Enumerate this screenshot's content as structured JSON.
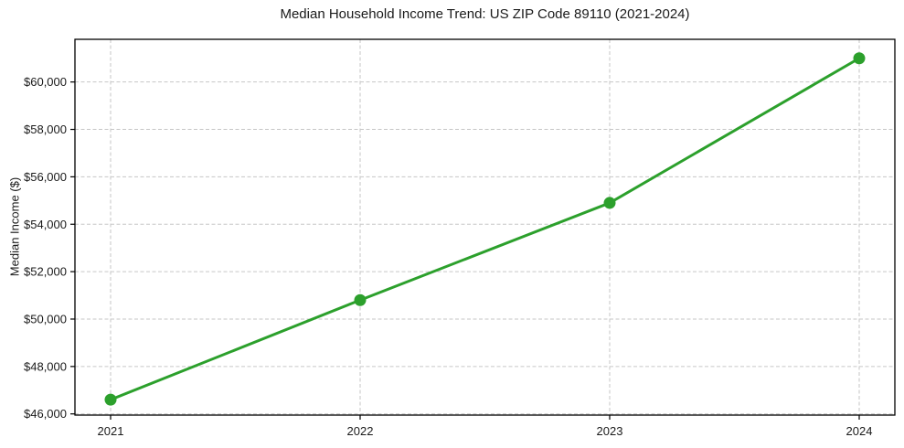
{
  "chart_data": {
    "type": "line",
    "title": "Median Household Income Trend: US ZIP Code 89110 (2021-2024)",
    "xlabel": "",
    "ylabel": "Median Income ($)",
    "categories": [
      "2021",
      "2022",
      "2023",
      "2024"
    ],
    "series": [
      {
        "name": "Median Household Income",
        "values": [
          46600,
          50800,
          54900,
          61000
        ]
      }
    ],
    "ylim": [
      45950,
      61800
    ],
    "yticks": [
      46000,
      48000,
      50000,
      52000,
      54000,
      56000,
      58000,
      60000
    ],
    "ytick_labels": [
      "$46,000",
      "$48,000",
      "$50,000",
      "$52,000",
      "$54,000",
      "$56,000",
      "$58,000",
      "$60,000"
    ],
    "xtick_labels": [
      "2021",
      "2022",
      "2023",
      "2024"
    ],
    "grid": true,
    "grid_style": "dashed",
    "grid_color": "#c6c6c6",
    "line_color": "#2ca02c",
    "marker": "circle",
    "marker_color": "#2ca02c",
    "frame_color": "#000000",
    "legend": "none"
  }
}
